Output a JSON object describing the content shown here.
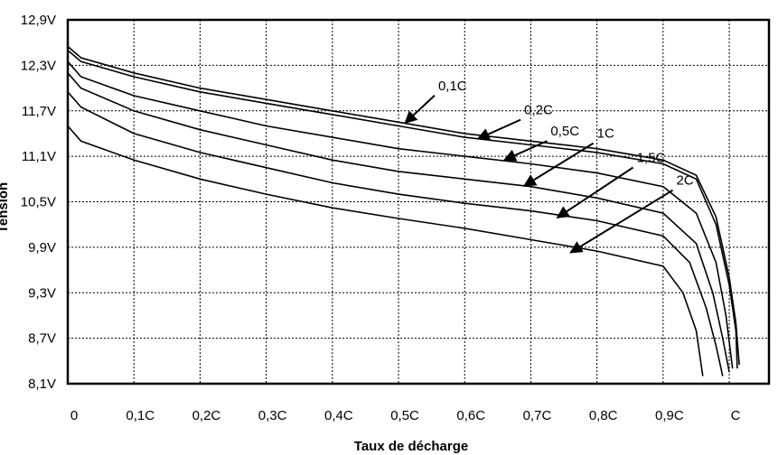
{
  "chart_data": {
    "type": "line",
    "xlabel": "Taux de décharge",
    "ylabel": "Tension",
    "xlim": [
      0,
      1.06
    ],
    "ylim": [
      8.1,
      12.9
    ],
    "x_ticks": [
      {
        "value": 0,
        "label": "0"
      },
      {
        "value": 0.1,
        "label": "0,1C"
      },
      {
        "value": 0.2,
        "label": "0,2C"
      },
      {
        "value": 0.3,
        "label": "0,3C"
      },
      {
        "value": 0.4,
        "label": "0,4C"
      },
      {
        "value": 0.5,
        "label": "0,5C"
      },
      {
        "value": 0.6,
        "label": "0,6C"
      },
      {
        "value": 0.7,
        "label": "0,7C"
      },
      {
        "value": 0.8,
        "label": "0,8C"
      },
      {
        "value": 0.9,
        "label": "0,9C"
      },
      {
        "value": 1.0,
        "label": "C"
      }
    ],
    "y_ticks": [
      {
        "value": 8.1,
        "label": "8,1V"
      },
      {
        "value": 8.7,
        "label": "8,7V"
      },
      {
        "value": 9.3,
        "label": "9,3V"
      },
      {
        "value": 9.9,
        "label": "9,9V"
      },
      {
        "value": 10.5,
        "label": "10,5V"
      },
      {
        "value": 11.1,
        "label": "11,1V"
      },
      {
        "value": 11.7,
        "label": "11,7V"
      },
      {
        "value": 12.3,
        "label": "12,3V"
      },
      {
        "value": 12.9,
        "label": "12,9V"
      }
    ],
    "grid": true,
    "series": [
      {
        "name": "0,1C",
        "points": [
          [
            0,
            12.55
          ],
          [
            0.02,
            12.4
          ],
          [
            0.1,
            12.2
          ],
          [
            0.2,
            12.0
          ],
          [
            0.3,
            11.85
          ],
          [
            0.4,
            11.7
          ],
          [
            0.5,
            11.55
          ],
          [
            0.6,
            11.4
          ],
          [
            0.7,
            11.3
          ],
          [
            0.8,
            11.2
          ],
          [
            0.9,
            11.05
          ],
          [
            0.95,
            10.85
          ],
          [
            0.98,
            10.3
          ],
          [
            1.0,
            9.5
          ],
          [
            1.01,
            8.9
          ],
          [
            1.015,
            8.35
          ]
        ],
        "label_anchor": [
          0.51,
          11.54
        ],
        "label_pos": [
          0.56,
          11.95
        ]
      },
      {
        "name": "0,2C",
        "points": [
          [
            0,
            12.5
          ],
          [
            0.02,
            12.35
          ],
          [
            0.1,
            12.15
          ],
          [
            0.2,
            11.95
          ],
          [
            0.3,
            11.8
          ],
          [
            0.4,
            11.65
          ],
          [
            0.5,
            11.5
          ],
          [
            0.6,
            11.35
          ],
          [
            0.7,
            11.25
          ],
          [
            0.8,
            11.15
          ],
          [
            0.9,
            11.0
          ],
          [
            0.95,
            10.8
          ],
          [
            0.98,
            10.2
          ],
          [
            1.0,
            9.4
          ],
          [
            1.01,
            8.8
          ],
          [
            1.012,
            8.3
          ]
        ],
        "label_anchor": [
          0.62,
          11.33
        ],
        "label_pos": [
          0.69,
          11.63
        ]
      },
      {
        "name": "0,5C",
        "points": [
          [
            0,
            12.35
          ],
          [
            0.02,
            12.15
          ],
          [
            0.1,
            11.9
          ],
          [
            0.2,
            11.7
          ],
          [
            0.3,
            11.5
          ],
          [
            0.4,
            11.35
          ],
          [
            0.5,
            11.2
          ],
          [
            0.6,
            11.1
          ],
          [
            0.7,
            11.0
          ],
          [
            0.8,
            10.88
          ],
          [
            0.9,
            10.7
          ],
          [
            0.95,
            10.35
          ],
          [
            0.98,
            9.7
          ],
          [
            0.995,
            9.0
          ],
          [
            1.005,
            8.3
          ]
        ],
        "label_anchor": [
          0.66,
          11.05
        ],
        "label_pos": [
          0.73,
          11.35
        ]
      },
      {
        "name": "1C",
        "points": [
          [
            0,
            12.2
          ],
          [
            0.02,
            12.0
          ],
          [
            0.1,
            11.7
          ],
          [
            0.2,
            11.45
          ],
          [
            0.3,
            11.25
          ],
          [
            0.4,
            11.05
          ],
          [
            0.5,
            10.9
          ],
          [
            0.6,
            10.8
          ],
          [
            0.7,
            10.7
          ],
          [
            0.8,
            10.55
          ],
          [
            0.9,
            10.35
          ],
          [
            0.95,
            9.95
          ],
          [
            0.975,
            9.3
          ],
          [
            0.99,
            8.7
          ],
          [
            1.0,
            8.25
          ]
        ],
        "label_anchor": [
          0.69,
          10.71
        ],
        "label_pos": [
          0.8,
          11.32
        ]
      },
      {
        "name": "1,5C",
        "points": [
          [
            0,
            11.95
          ],
          [
            0.02,
            11.75
          ],
          [
            0.1,
            11.4
          ],
          [
            0.2,
            11.15
          ],
          [
            0.3,
            10.95
          ],
          [
            0.4,
            10.75
          ],
          [
            0.5,
            10.6
          ],
          [
            0.6,
            10.48
          ],
          [
            0.7,
            10.38
          ],
          [
            0.8,
            10.25
          ],
          [
            0.9,
            10.05
          ],
          [
            0.94,
            9.7
          ],
          [
            0.965,
            9.1
          ],
          [
            0.98,
            8.6
          ],
          [
            0.99,
            8.2
          ]
        ],
        "label_anchor": [
          0.74,
          10.29
        ],
        "label_pos": [
          0.86,
          11.0
        ]
      },
      {
        "name": "2C",
        "points": [
          [
            0,
            11.5
          ],
          [
            0.02,
            11.3
          ],
          [
            0.1,
            11.05
          ],
          [
            0.2,
            10.8
          ],
          [
            0.3,
            10.6
          ],
          [
            0.4,
            10.42
          ],
          [
            0.5,
            10.28
          ],
          [
            0.6,
            10.15
          ],
          [
            0.7,
            10.0
          ],
          [
            0.8,
            9.85
          ],
          [
            0.9,
            9.65
          ],
          [
            0.93,
            9.3
          ],
          [
            0.95,
            8.8
          ],
          [
            0.96,
            8.2
          ]
        ],
        "label_anchor": [
          0.76,
          9.83
        ],
        "label_pos": [
          0.92,
          10.7
        ]
      }
    ]
  }
}
